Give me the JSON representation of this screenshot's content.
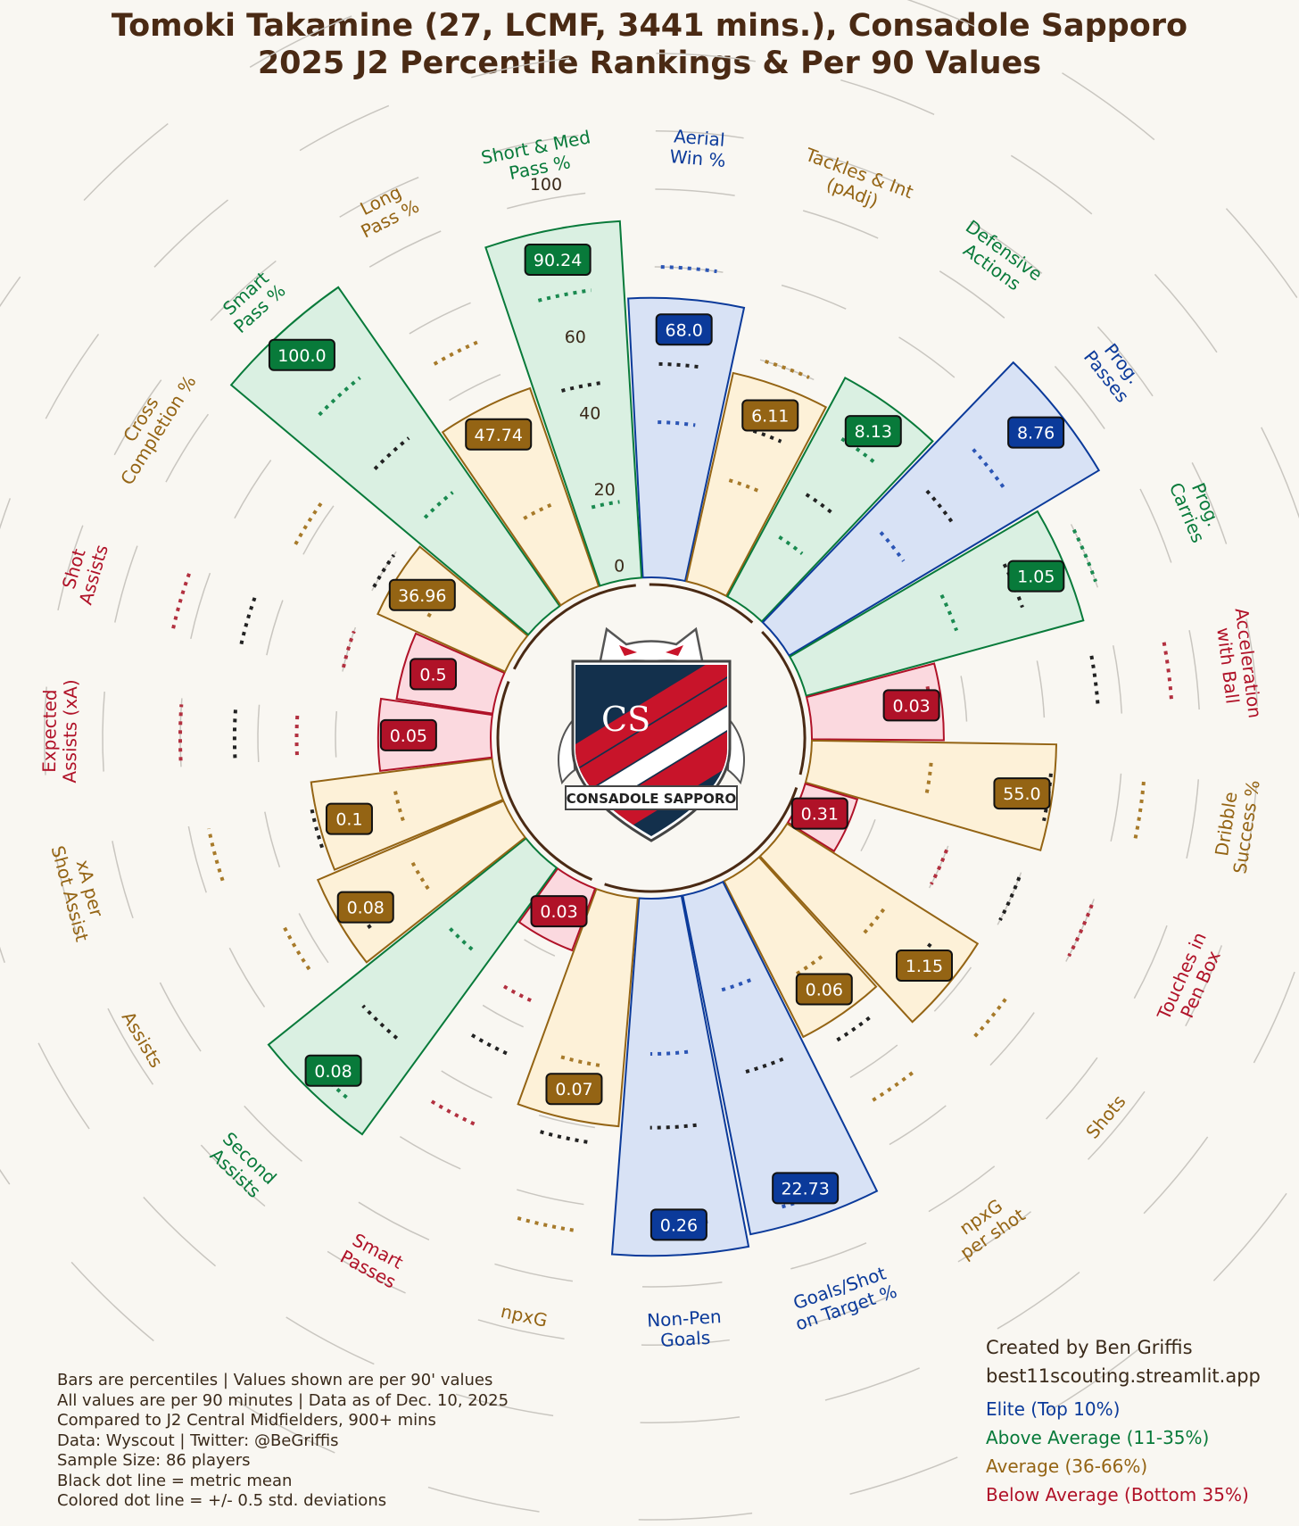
{
  "title": {
    "line1": "Tomoki Takamine (27, LCMF, 3441 mins.), Consadole Sapporo",
    "line2": "2025 J2 Percentile Rankings & Per 90 Values"
  },
  "logo": {
    "name": "consadole-sapporo-crest",
    "banner_text": "CONSADOLE SAPPORO",
    "letters": "CS"
  },
  "colors": {
    "elite": "#0b3a9a",
    "above": "#087a3a",
    "average": "#946414",
    "below": "#b01228",
    "title": "#4a2a14",
    "background": "#f9f7f2"
  },
  "chart_data": {
    "type": "polar-bar",
    "radial_axis": {
      "range": [
        0,
        100
      ],
      "ticks": [
        "0",
        "20",
        "40",
        "60",
        "80",
        "100"
      ]
    },
    "metrics": [
      {
        "label": "Aerial\nWin %",
        "percentile": 72,
        "value": "68.0",
        "tier": "elite",
        "mean_pct": 55,
        "sd_pcts": [
          40,
          80
        ]
      },
      {
        "label": "Tackles & Int\n(pAdj)",
        "percentile": 55,
        "value": "6.11",
        "tier": "average",
        "mean_pct": 42,
        "sd_pcts": [
          28,
          60
        ]
      },
      {
        "label": "Defensive\nActions",
        "percentile": 64,
        "value": "8.13",
        "tier": "above",
        "mean_pct": 33,
        "sd_pcts": [
          20,
          50
        ]
      },
      {
        "label": "Prog.\nPasses",
        "percentile": 93,
        "value": "8.76",
        "tier": "elite",
        "mean_pct": 54,
        "sd_pcts": [
          38,
          70
        ]
      },
      {
        "label": "Prog.\nCarries",
        "percentile": 74,
        "value": "1.05",
        "tier": "above",
        "mean_pct": 60,
        "sd_pcts": [
          42,
          80
        ]
      },
      {
        "label": "Acceleration\nwith Ball",
        "percentile": 34,
        "value": "0.03",
        "tier": "below",
        "mean_pct": 74,
        "sd_pcts": [
          31,
          93
        ]
      },
      {
        "label": "Dribble\nSuccess %",
        "percentile": 63,
        "value": "55.0",
        "tier": "average",
        "mean_pct": 62,
        "sd_pcts": [
          31,
          86
        ]
      },
      {
        "label": "Touches in\nPen Box",
        "percentile": 14,
        "value": "0.31",
        "tier": "below",
        "mean_pct": 60,
        "sd_pcts": [
          40,
          80
        ]
      },
      {
        "label": "Shots",
        "percentile": 58,
        "value": "1.15",
        "tier": "average",
        "mean_pct": 48,
        "sd_pcts": [
          33,
          72
        ]
      },
      {
        "label": "npxG\nper shot",
        "percentile": 45,
        "value": "0.06",
        "tier": "average",
        "mean_pct": 50,
        "sd_pcts": [
          30,
          68
        ]
      },
      {
        "label": "Goals/Shot\non Target %",
        "percentile": 89,
        "value": "22.73",
        "tier": "elite",
        "mean_pct": 48,
        "sd_pcts": [
          26,
          84
        ]
      },
      {
        "label": "Non-Pen\nGoals",
        "percentile": 92,
        "value": "0.26",
        "tier": "elite",
        "mean_pct": 59,
        "sd_pcts": [
          40,
          84
        ]
      },
      {
        "label": "npxG",
        "percentile": 59,
        "value": "0.07",
        "tier": "average",
        "mean_pct": 64,
        "sd_pcts": [
          44,
          87
        ]
      },
      {
        "label": "Smart\nPasses",
        "percentile": 17,
        "value": "0.03",
        "tier": "below",
        "mean_pct": 48,
        "sd_pcts": [
          33,
          68
        ]
      },
      {
        "label": "Second\nAssists",
        "percentile": 85,
        "value": "0.08",
        "tier": "above",
        "mean_pct": 60,
        "sd_pcts": [
          30,
          80
        ]
      },
      {
        "label": "Assists",
        "percentile": 52,
        "value": "0.08",
        "tier": "average",
        "mean_pct": 46,
        "sd_pcts": [
          28,
          65
        ]
      },
      {
        "label": "xA per\nShot Assist",
        "percentile": 47,
        "value": "0.1",
        "tier": "average",
        "mean_pct": 48,
        "sd_pcts": [
          26,
          75
        ]
      },
      {
        "label": "Expected\nAssists (xA)",
        "percentile": 29,
        "value": "0.05",
        "tier": "below",
        "mean_pct": 66,
        "sd_pcts": [
          50,
          80
        ]
      },
      {
        "label": "Shot\nAssists",
        "percentile": 25,
        "value": "0.5",
        "tier": "below",
        "mean_pct": 67,
        "sd_pcts": [
          40,
          85
        ]
      },
      {
        "label": "Cross\nCompletion %",
        "percentile": 36,
        "value": "36.96",
        "tier": "average",
        "mean_pct": 40,
        "sd_pcts": [
          24,
          63
        ]
      },
      {
        "label": "Smart\nPass %",
        "percentile": 100,
        "value": "100.0",
        "tier": "above",
        "mean_pct": 58,
        "sd_pcts": [
          40,
          78
        ]
      },
      {
        "label": "Long\nPass %",
        "percentile": 54,
        "value": "47.74",
        "tier": "average",
        "mean_pct": 47,
        "sd_pcts": [
          24,
          70
        ]
      },
      {
        "label": "Short & Med\nPass %",
        "percentile": 92,
        "value": "90.24",
        "tier": "above",
        "mean_pct": 51,
        "sd_pcts": [
          20,
          75
        ]
      }
    ]
  },
  "notes": [
    "Bars are percentiles | Values shown are per 90' values",
    "All values are per 90 minutes | Data as of Dec. 10, 2025",
    "Compared to J2 Central Midfielders, 900+ mins",
    "Data: Wyscout | Twitter: @BeGriffis",
    "Sample Size: 86 players",
    "Black dot line = metric mean",
    "Colored dot line = +/- 0.5 std. deviations"
  ],
  "credits": [
    "Created by Ben Griffis",
    "best11scouting.streamlit.app"
  ],
  "legend": [
    {
      "label": "Elite (Top 10%)",
      "tier": "elite"
    },
    {
      "label": "Above Average (11-35%)",
      "tier": "above"
    },
    {
      "label": "Average (36-66%)",
      "tier": "average"
    },
    {
      "label": "Below Average (Bottom 35%)",
      "tier": "below"
    }
  ]
}
